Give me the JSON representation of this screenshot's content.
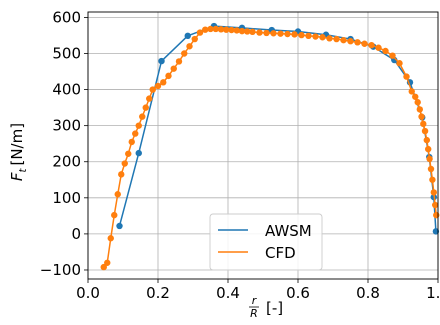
{
  "chart_data": {
    "type": "line",
    "xlabel": "r/R [-]",
    "xlabel_parts": {
      "num": "r",
      "den": "R",
      "unit": "[-]"
    },
    "ylabel": "F_t [N/m]",
    "ylabel_parts": {
      "main": "F",
      "sub": "t",
      "unit": "[N/m]"
    },
    "xlim": [
      0.0,
      1.0
    ],
    "ylim": [
      -125,
      615
    ],
    "xticks": [
      0.0,
      0.2,
      0.4,
      0.6,
      0.8,
      1.0
    ],
    "xtick_labels": [
      "0.0",
      "0.2",
      "0.4",
      "0.6",
      "0.8",
      "1.0"
    ],
    "yticks": [
      -100,
      0,
      100,
      200,
      300,
      400,
      500,
      600
    ],
    "ytick_labels": [
      "−100",
      "0",
      "100",
      "200",
      "300",
      "400",
      "500",
      "600"
    ],
    "grid": true,
    "legend_position": "lower center",
    "series": [
      {
        "name": "AWSM",
        "color": "#1f77b4",
        "marker": "circle",
        "x": [
          0.09,
          0.145,
          0.21,
          0.285,
          0.36,
          0.44,
          0.525,
          0.6,
          0.68,
          0.75,
          0.815,
          0.875,
          0.92,
          0.955,
          0.975,
          0.988,
          0.994
        ],
        "y": [
          22,
          224,
          479,
          549,
          576,
          571,
          565,
          561,
          552,
          540,
          519,
          482,
          420,
          323,
          213,
          102,
          7
        ]
      },
      {
        "name": "CFD",
        "color": "#ff7f0e",
        "marker": "circle",
        "x": [
          0.045,
          0.055,
          0.065,
          0.075,
          0.085,
          0.095,
          0.105,
          0.115,
          0.125,
          0.135,
          0.145,
          0.155,
          0.165,
          0.175,
          0.185,
          0.2,
          0.215,
          0.23,
          0.245,
          0.26,
          0.275,
          0.29,
          0.305,
          0.32,
          0.335,
          0.35,
          0.365,
          0.38,
          0.395,
          0.41,
          0.425,
          0.44,
          0.455,
          0.47,
          0.49,
          0.51,
          0.53,
          0.55,
          0.57,
          0.59,
          0.61,
          0.63,
          0.65,
          0.67,
          0.69,
          0.71,
          0.73,
          0.75,
          0.77,
          0.79,
          0.81,
          0.83,
          0.85,
          0.87,
          0.89,
          0.91,
          0.925,
          0.935,
          0.942,
          0.948,
          0.953,
          0.958,
          0.963,
          0.968,
          0.972,
          0.976,
          0.98,
          0.984,
          0.988,
          0.992,
          0.995
        ],
        "y": [
          -92,
          -80,
          -12,
          52,
          110,
          165,
          195,
          222,
          255,
          278,
          300,
          325,
          350,
          375,
          400,
          410,
          420,
          438,
          458,
          478,
          500,
          520,
          540,
          558,
          566,
          568,
          568,
          567,
          566,
          565,
          564,
          562,
          561,
          560,
          558,
          557,
          556,
          555,
          554,
          553,
          551,
          549,
          547,
          545,
          542,
          540,
          537,
          534,
          531,
          527,
          523,
          516,
          507,
          494,
          473,
          436,
          395,
          380,
          365,
          345,
          325,
          305,
          285,
          260,
          235,
          208,
          180,
          150,
          115,
          80,
          52
        ]
      }
    ]
  }
}
